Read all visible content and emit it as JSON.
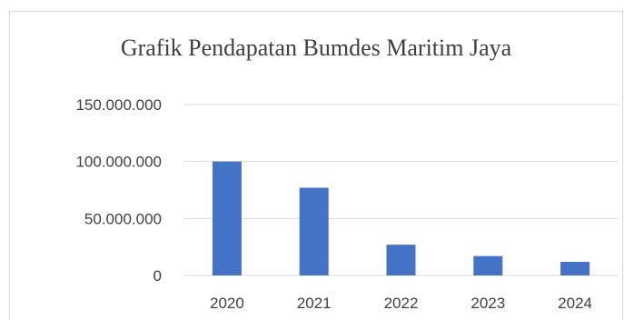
{
  "chart_data": {
    "type": "bar",
    "title": "Grafik Pendapatan Bumdes Maritim Jaya",
    "xlabel": "",
    "ylabel": "",
    "categories": [
      "2020",
      "2021",
      "2022",
      "2023",
      "2024"
    ],
    "series": [
      {
        "values": [
          100000000,
          77000000,
          27000000,
          17000000,
          12000000
        ]
      }
    ],
    "ylim": [
      0,
      150000000
    ],
    "yticks": [
      0,
      50000000,
      100000000,
      150000000
    ],
    "ytick_labels": [
      "0",
      "50.000.000",
      "100.000.000",
      "150.000.000"
    ],
    "grid": true,
    "legend": "none",
    "colors": {
      "bar": "#4472c4",
      "grid": "#d9d9d9",
      "text": "#404040"
    }
  }
}
